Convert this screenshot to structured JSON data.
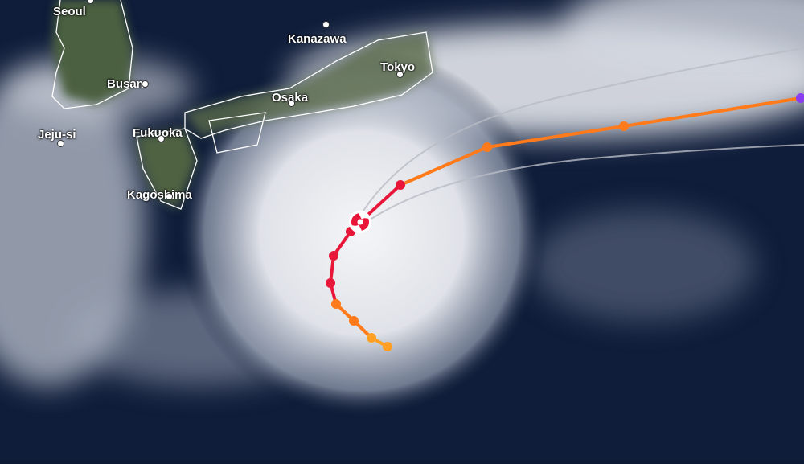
{
  "map": {
    "type": "satellite imagery with storm track",
    "cities": [
      {
        "name": "Seoul"
      },
      {
        "name": "Busan"
      },
      {
        "name": "Jeju-si"
      },
      {
        "name": "Fukuoka"
      },
      {
        "name": "Kagoshima"
      },
      {
        "name": "Osaka"
      },
      {
        "name": "Kanazawa"
      },
      {
        "name": "Tokyo"
      }
    ],
    "storm_icon": "hurricane-icon",
    "track_colors": {
      "tropical_storm": "#ffa024",
      "category_1": "#ff7a1a",
      "major": "#e8173a",
      "extratropical": "#8a3cf0"
    },
    "cone_color": "#b8bcc4"
  }
}
